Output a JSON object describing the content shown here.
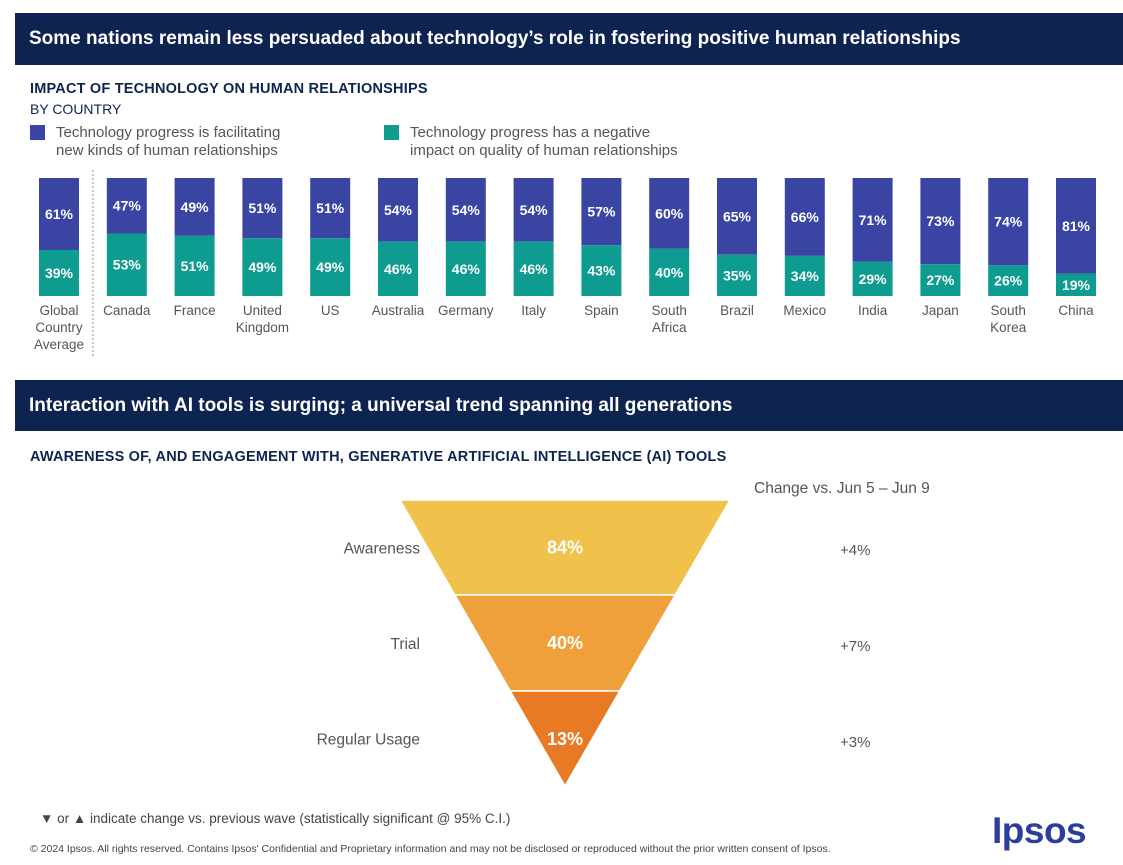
{
  "header1": "Some nations remain less persuaded about technology’s role in fostering positive human relationships",
  "header2": "Interaction with AI tools is surging; a universal trend spanning all generations",
  "footnote": "▼ or ▲ indicate change vs. previous wave (statistically significant @ 95% C.I.)",
  "copyright": "© 2024 Ipsos. All rights reserved. Contains Ipsos' Confidential and Proprietary information and may not be disclosed or reproduced without the prior written consent of Ipsos.",
  "logo": "Ipsos",
  "colors": {
    "navy": "#0d2451",
    "blue": "#3a45a3",
    "teal": "#0e9b90",
    "funnel": [
      "#f0c14b",
      "#f0a03b",
      "#e87a25"
    ]
  },
  "chart_data": [
    {
      "type": "bar",
      "stacked": true,
      "title": "IMPACT OF TECHNOLOGY ON HUMAN RELATIONSHIPS",
      "subtitle": "BY COUNTRY",
      "categories": [
        "Global Country Average",
        "Canada",
        "France",
        "United Kingdom",
        "US",
        "Australia",
        "Germany",
        "Italy",
        "Spain",
        "South Africa",
        "Brazil",
        "Mexico",
        "India",
        "Japan",
        "South Korea",
        "China"
      ],
      "category_lines": [
        [
          "Global",
          "Country",
          "Average"
        ],
        [
          "Canada"
        ],
        [
          "France"
        ],
        [
          "United",
          "Kingdom"
        ],
        [
          "US"
        ],
        [
          "Australia"
        ],
        [
          "Germany"
        ],
        [
          "Italy"
        ],
        [
          "Spain"
        ],
        [
          "South",
          "Africa"
        ],
        [
          "Brazil"
        ],
        [
          "Mexico"
        ],
        [
          "India"
        ],
        [
          "Japan"
        ],
        [
          "South",
          "Korea"
        ],
        [
          "China"
        ]
      ],
      "series": [
        {
          "name": "Technology progress is facilitating\nnew kinds of human relationships",
          "color": "#3a45a3",
          "values": [
            61,
            47,
            49,
            51,
            51,
            54,
            54,
            54,
            57,
            60,
            65,
            66,
            71,
            73,
            74,
            81
          ]
        },
        {
          "name": "Technology progress has a negative\nimpact on quality of human relationships",
          "color": "#0e9b90",
          "values": [
            39,
            53,
            51,
            49,
            49,
            46,
            46,
            46,
            43,
            40,
            35,
            34,
            29,
            27,
            26,
            19
          ]
        }
      ],
      "ylim": [
        0,
        100
      ],
      "grid": false,
      "legend": "top-left"
    },
    {
      "type": "funnel",
      "title": "AWARENESS OF, AND ENGAGEMENT WITH, GENERATIVE ARTIFICIAL INTELLIGENCE (AI) TOOLS",
      "stages": [
        {
          "label": "Awareness",
          "value": 84,
          "change": "+4%"
        },
        {
          "label": "Trial",
          "value": 40,
          "change": "+7%"
        },
        {
          "label": "Regular Usage",
          "value": 13,
          "change": "+3%"
        }
      ],
      "change_header": "Change vs. Jun 5 – Jun 9"
    }
  ]
}
